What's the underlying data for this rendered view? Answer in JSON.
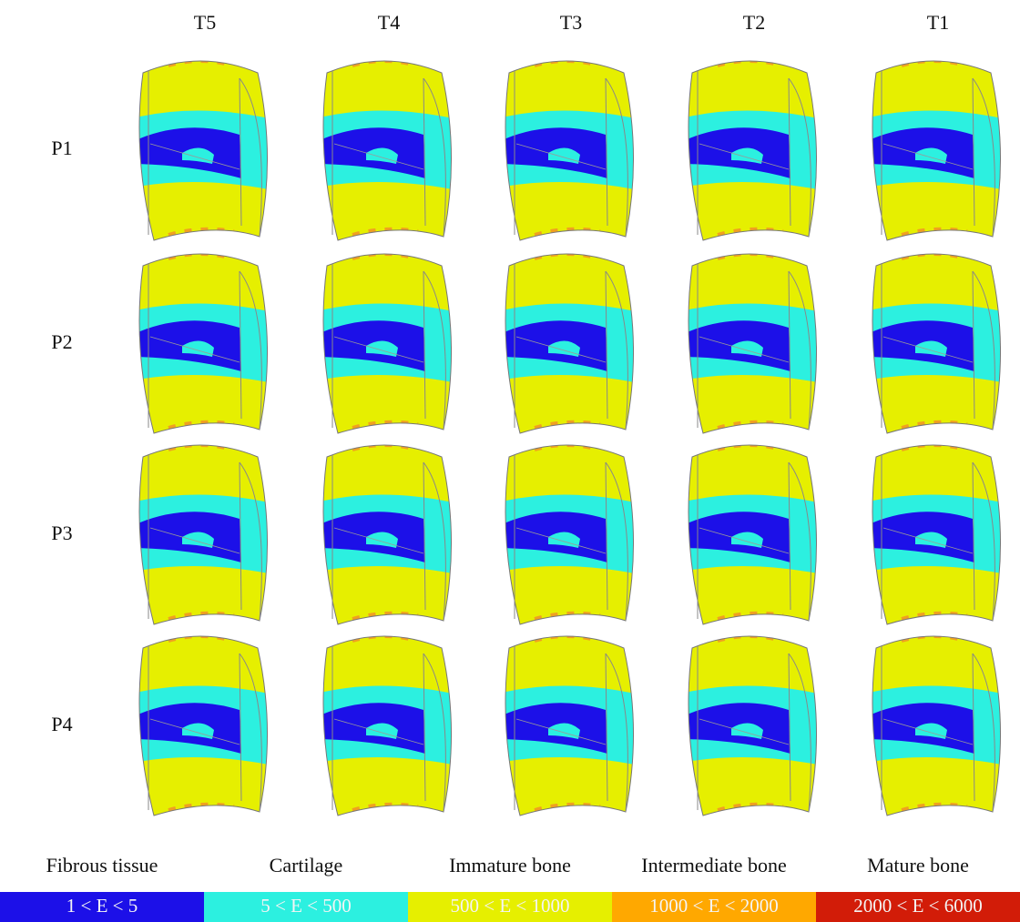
{
  "columns": [
    "T5",
    "T4",
    "T3",
    "T2",
    "T1"
  ],
  "rows": [
    "P1",
    "P2",
    "P3",
    "P4"
  ],
  "legend": [
    {
      "name": "Fibrous tissue",
      "range": "1 < E < 5"
    },
    {
      "name": "Cartilage",
      "range": "5 < E < 500"
    },
    {
      "name": "Immature bone",
      "range": "500 < E < 1000"
    },
    {
      "name": "Intermediate bone",
      "range": "1000 < E < 2000"
    },
    {
      "name": "Mature bone",
      "range": "2000 < E < 6000"
    }
  ]
}
